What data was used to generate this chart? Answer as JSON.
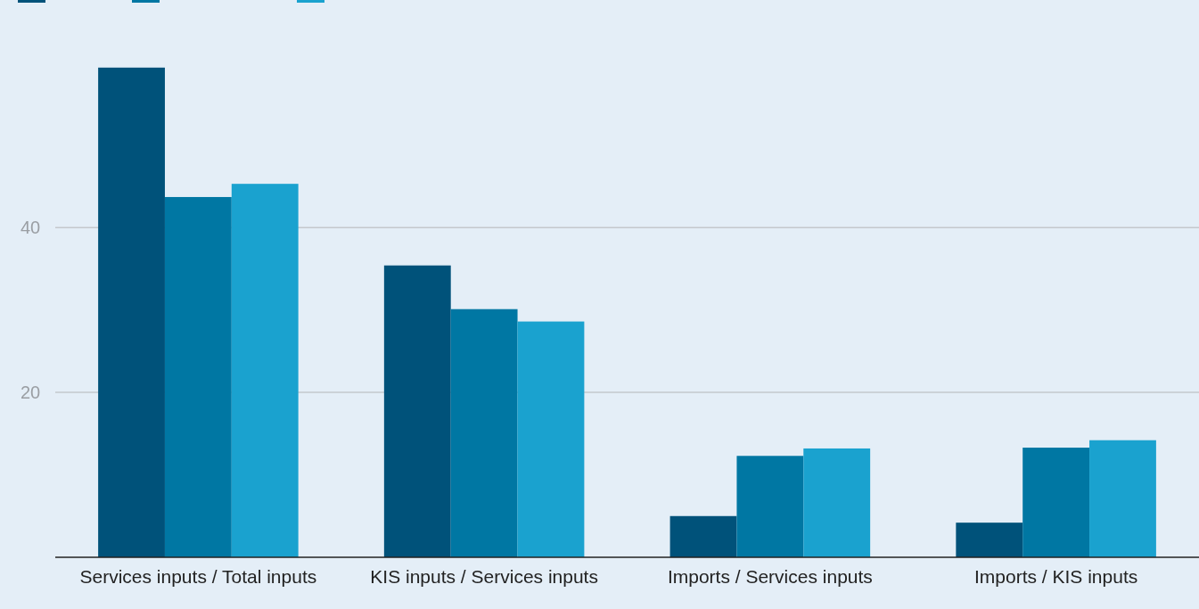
{
  "chart_data": {
    "type": "bar",
    "categories": [
      "Services inputs / Total inputs",
      "KIS inputs / Services inputs",
      "Imports / Services inputs",
      "Imports / KIS inputs"
    ],
    "series": [
      {
        "color": "#00527a",
        "values": [
          59.4,
          35.4,
          5.0,
          4.2
        ]
      },
      {
        "color": "#0077a3",
        "values": [
          43.7,
          30.1,
          12.3,
          13.3
        ]
      },
      {
        "color": "#1aa2cf",
        "values": [
          45.3,
          28.6,
          13.2,
          14.2
        ]
      }
    ],
    "ylim": [
      0,
      67.6
    ],
    "yticks": [
      20,
      40
    ],
    "grid": "y"
  }
}
